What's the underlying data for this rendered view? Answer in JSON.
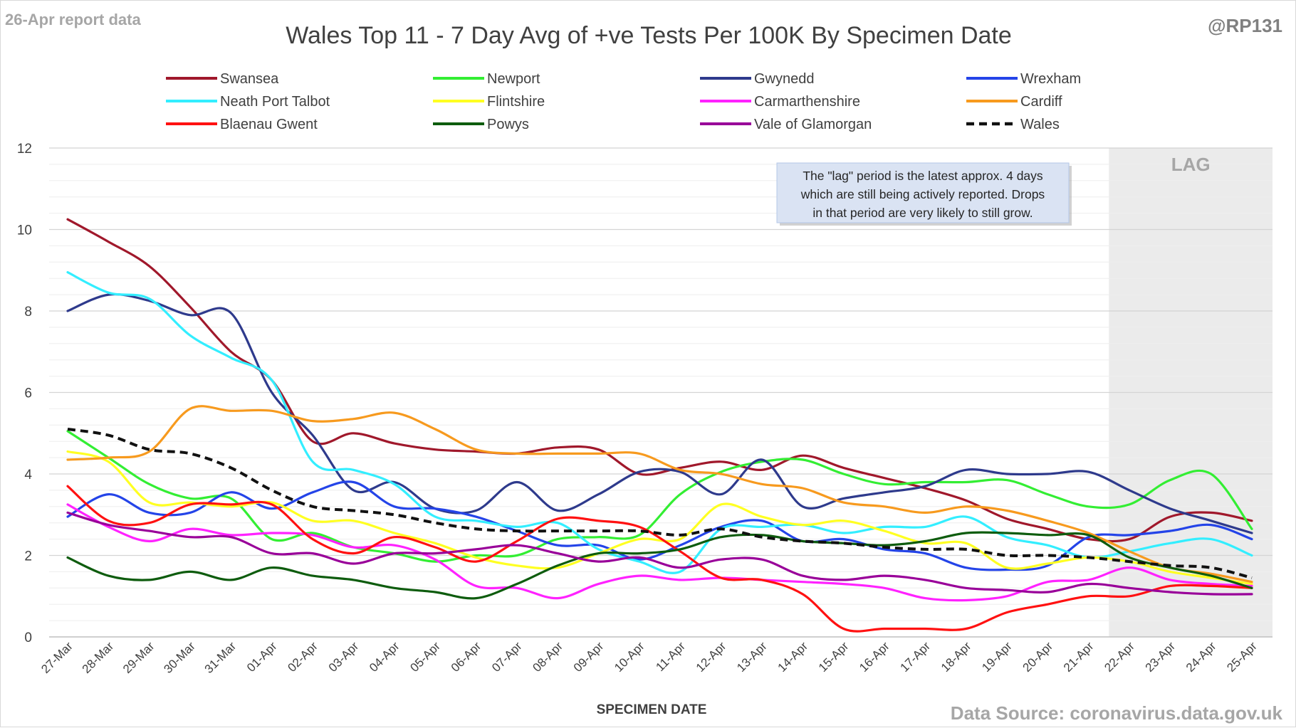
{
  "header": {
    "report_label": "26-Apr report data",
    "handle": "@RP131",
    "source": "Data Source: coronavirus.data.gov.uk"
  },
  "annotation": {
    "lines": [
      "The \"lag\" period is the latest approx. 4 days",
      "which are still being actively reported.  Drops",
      "in that period are very likely to still grow."
    ]
  },
  "chart_data": {
    "type": "line",
    "title": "Wales Top 11 - 7 Day Avg of +ve Tests Per 100K By Specimen Date",
    "xlabel": "SPECIMEN DATE",
    "ylabel": "",
    "ylim": [
      0,
      12
    ],
    "yticks": [
      0,
      2,
      4,
      6,
      8,
      10,
      12
    ],
    "grid": true,
    "minor_grid": true,
    "legend_position": "top",
    "lag_label": "LAG",
    "lag_start": "22-Apr",
    "lag_end": "25-Apr",
    "categories": [
      "27-Mar",
      "28-Mar",
      "29-Mar",
      "30-Mar",
      "31-Mar",
      "01-Apr",
      "02-Apr",
      "03-Apr",
      "04-Apr",
      "05-Apr",
      "06-Apr",
      "07-Apr",
      "08-Apr",
      "09-Apr",
      "10-Apr",
      "11-Apr",
      "12-Apr",
      "13-Apr",
      "14-Apr",
      "15-Apr",
      "16-Apr",
      "17-Apr",
      "18-Apr",
      "19-Apr",
      "20-Apr",
      "21-Apr",
      "22-Apr",
      "23-Apr",
      "24-Apr",
      "25-Apr"
    ],
    "series": [
      {
        "name": "Swansea",
        "color": "#a0182b",
        "dashed": false,
        "values": [
          10.25,
          9.7,
          9.1,
          8.1,
          7.0,
          6.3,
          4.8,
          5.0,
          4.75,
          4.6,
          4.55,
          4.5,
          4.65,
          4.6,
          4.0,
          4.15,
          4.3,
          4.1,
          4.45,
          4.15,
          3.9,
          3.65,
          3.35,
          2.9,
          2.65,
          2.4,
          2.4,
          2.95,
          3.05,
          2.85
        ]
      },
      {
        "name": "Newport",
        "color": "#33ee33",
        "dashed": false,
        "values": [
          5.05,
          4.4,
          3.75,
          3.4,
          3.4,
          2.4,
          2.55,
          2.2,
          2.05,
          1.85,
          2.0,
          2.0,
          2.4,
          2.45,
          2.5,
          3.5,
          4.05,
          4.3,
          4.35,
          4.0,
          3.75,
          3.8,
          3.8,
          3.85,
          3.5,
          3.2,
          3.25,
          3.85,
          4.0,
          2.65
        ]
      },
      {
        "name": "Gwynedd",
        "color": "#2e3a8c",
        "dashed": false,
        "values": [
          8.0,
          8.4,
          8.25,
          7.9,
          7.95,
          6.0,
          4.95,
          3.6,
          3.8,
          3.15,
          3.1,
          3.8,
          3.1,
          3.5,
          4.05,
          4.05,
          3.5,
          4.35,
          3.2,
          3.4,
          3.55,
          3.7,
          4.1,
          4.0,
          4.0,
          4.05,
          3.6,
          3.15,
          2.85,
          2.55
        ]
      },
      {
        "name": "Wrexham",
        "color": "#2444e8",
        "dashed": false,
        "values": [
          2.95,
          3.5,
          3.05,
          3.05,
          3.55,
          3.15,
          3.55,
          3.8,
          3.2,
          3.15,
          2.95,
          2.6,
          2.25,
          2.25,
          1.9,
          2.25,
          2.7,
          2.85,
          2.35,
          2.4,
          2.15,
          2.05,
          1.7,
          1.65,
          1.75,
          2.45,
          2.5,
          2.6,
          2.75,
          2.4
        ]
      },
      {
        "name": "Neath Port Talbot",
        "color": "#33eeff",
        "dashed": false,
        "values": [
          8.95,
          8.45,
          8.3,
          7.4,
          6.85,
          6.3,
          4.3,
          4.1,
          3.75,
          2.95,
          2.85,
          2.7,
          2.8,
          2.15,
          1.85,
          1.6,
          2.65,
          2.7,
          2.75,
          2.55,
          2.7,
          2.7,
          2.95,
          2.45,
          2.25,
          1.95,
          2.1,
          2.3,
          2.4,
          2.0
        ]
      },
      {
        "name": "Flintshire",
        "color": "#ffff22",
        "dashed": false,
        "values": [
          4.55,
          4.3,
          3.3,
          3.3,
          3.2,
          3.3,
          2.85,
          2.85,
          2.55,
          2.3,
          1.95,
          1.75,
          1.7,
          2.05,
          2.4,
          2.4,
          3.25,
          2.95,
          2.75,
          2.85,
          2.6,
          2.3,
          2.3,
          1.7,
          1.8,
          1.95,
          1.85,
          1.6,
          1.45,
          1.3
        ]
      },
      {
        "name": "Carmarthenshire",
        "color": "#ff22ff",
        "dashed": false,
        "values": [
          3.25,
          2.7,
          2.35,
          2.65,
          2.5,
          2.55,
          2.5,
          2.2,
          2.25,
          1.9,
          1.25,
          1.2,
          0.95,
          1.3,
          1.5,
          1.4,
          1.45,
          1.4,
          1.35,
          1.3,
          1.2,
          0.95,
          0.9,
          1.0,
          1.35,
          1.4,
          1.7,
          1.4,
          1.3,
          1.25
        ]
      },
      {
        "name": "Cardiff",
        "color": "#f79a1e",
        "dashed": false,
        "values": [
          4.35,
          4.4,
          4.55,
          5.6,
          5.55,
          5.55,
          5.3,
          5.35,
          5.5,
          5.1,
          4.6,
          4.5,
          4.5,
          4.5,
          4.5,
          4.1,
          4.0,
          3.75,
          3.65,
          3.3,
          3.2,
          3.05,
          3.2,
          3.1,
          2.85,
          2.55,
          2.1,
          1.7,
          1.55,
          1.35
        ]
      },
      {
        "name": "Blaenau Gwent",
        "color": "#ff1111",
        "dashed": false,
        "values": [
          3.7,
          2.85,
          2.8,
          3.25,
          3.25,
          3.25,
          2.4,
          2.05,
          2.45,
          2.2,
          1.85,
          2.35,
          2.9,
          2.85,
          2.7,
          2.1,
          1.45,
          1.4,
          1.05,
          0.2,
          0.2,
          0.2,
          0.2,
          0.6,
          0.8,
          1.0,
          1.0,
          1.25,
          1.25,
          1.2
        ]
      },
      {
        "name": "Powys",
        "color": "#0e5c0e",
        "dashed": false,
        "values": [
          1.95,
          1.5,
          1.4,
          1.6,
          1.4,
          1.7,
          1.5,
          1.4,
          1.2,
          1.1,
          0.95,
          1.3,
          1.75,
          2.05,
          2.05,
          2.15,
          2.45,
          2.5,
          2.35,
          2.3,
          2.25,
          2.35,
          2.55,
          2.55,
          2.5,
          2.5,
          1.95,
          1.7,
          1.5,
          1.2
        ]
      },
      {
        "name": "Vale of Glamorgan",
        "color": "#990099",
        "dashed": false,
        "values": [
          3.05,
          2.75,
          2.6,
          2.45,
          2.45,
          2.05,
          2.05,
          1.8,
          2.05,
          2.05,
          2.15,
          2.25,
          2.05,
          1.85,
          1.95,
          1.7,
          1.9,
          1.9,
          1.5,
          1.4,
          1.5,
          1.4,
          1.2,
          1.15,
          1.1,
          1.3,
          1.2,
          1.1,
          1.05,
          1.05
        ]
      },
      {
        "name": "Wales",
        "color": "#111111",
        "dashed": true,
        "values": [
          5.1,
          4.95,
          4.6,
          4.5,
          4.15,
          3.6,
          3.2,
          3.1,
          3.0,
          2.8,
          2.65,
          2.6,
          2.6,
          2.6,
          2.6,
          2.5,
          2.65,
          2.45,
          2.35,
          2.3,
          2.2,
          2.15,
          2.15,
          2.0,
          2.0,
          1.95,
          1.85,
          1.75,
          1.7,
          1.45
        ]
      }
    ]
  }
}
